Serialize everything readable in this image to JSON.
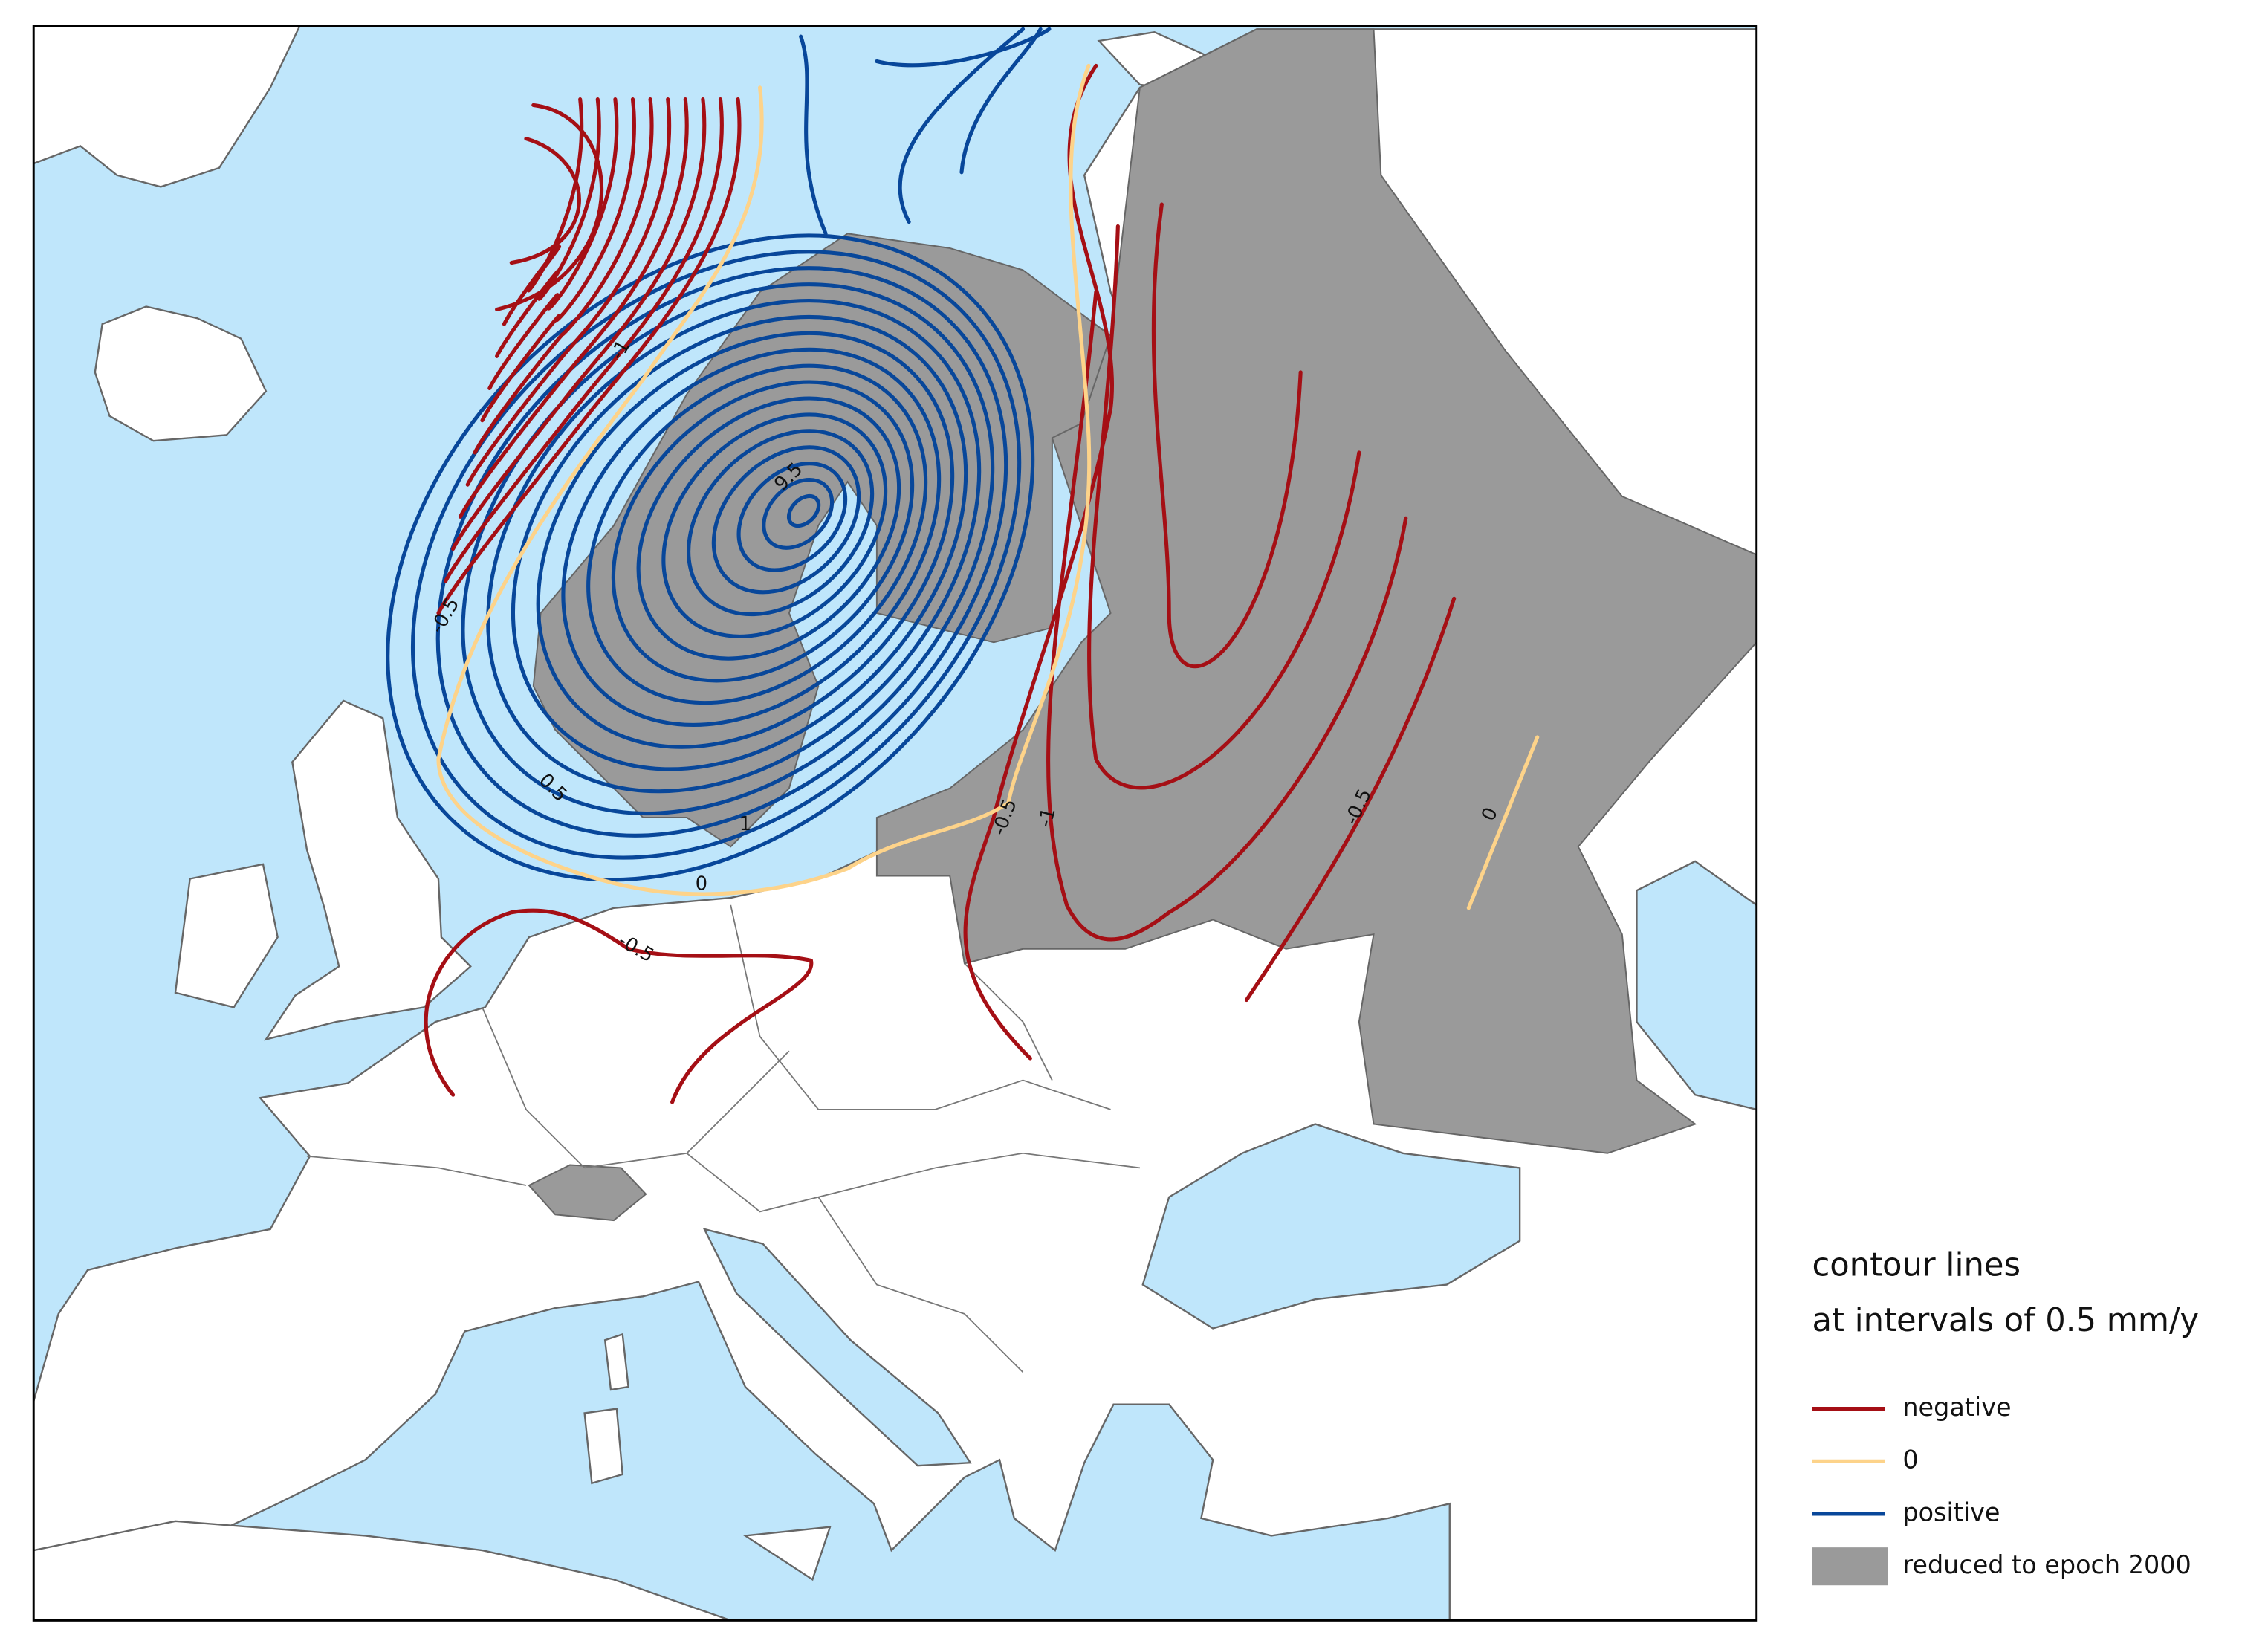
{
  "legend": {
    "title": "contour lines",
    "subtitle": "at intervals of 0.5 mm/y",
    "items": [
      {
        "label": "negative",
        "color": "#a50f15"
      },
      {
        "label": "0",
        "color": "#fdd38a"
      },
      {
        "label": "positive",
        "color": "#08479a"
      },
      {
        "label": "reduced to epoch 2000",
        "color": "#9a9a9a"
      }
    ]
  },
  "contour_labels": [
    "-1",
    "-0.5",
    "9.5",
    "0.5",
    "1",
    "0",
    "-0.5",
    "-0.5",
    "-1",
    "-0.5",
    "0"
  ]
}
